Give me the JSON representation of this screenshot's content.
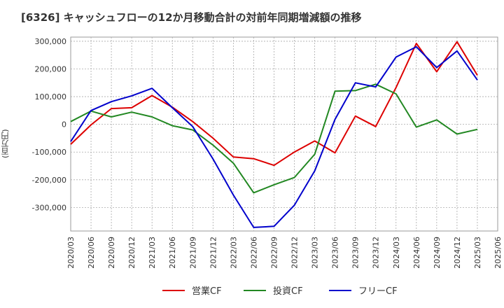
{
  "chart_data": {
    "type": "line",
    "title": "[6326]  キャッシュフローの12か月移動合計の対前年同期増減額の推移",
    "ylabel": "(百万円)",
    "xlabel": "",
    "ylim": [
      -385000,
      315000
    ],
    "yticks": [
      300000,
      200000,
      100000,
      0,
      -100000,
      -200000,
      -300000
    ],
    "ytick_labels": [
      "300,000",
      "200,000",
      "100,000",
      "0",
      "-100,000",
      "-200,000",
      "-300,000"
    ],
    "categories": [
      "2020/03",
      "2020/06",
      "2020/09",
      "2020/12",
      "2021/03",
      "2021/06",
      "2021/09",
      "2021/12",
      "2022/03",
      "2022/06",
      "2022/09",
      "2022/12",
      "2023/03",
      "2023/06",
      "2023/09",
      "2023/12",
      "2024/03",
      "2024/06",
      "2024/09",
      "2024/12",
      "2025/03",
      "2025/06"
    ],
    "grid": true,
    "legend_position": "bottom",
    "series": [
      {
        "name": "営業CF",
        "color": "#dd0000",
        "values": [
          -72000,
          -2000,
          57000,
          60000,
          104000,
          62000,
          10000,
          -50000,
          -118000,
          -124000,
          -148000,
          -100000,
          -60000,
          -103000,
          30000,
          -8000,
          133000,
          292000,
          190000,
          298000,
          177000,
          null
        ]
      },
      {
        "name": "投資CF",
        "color": "#228822",
        "values": [
          10000,
          48000,
          27000,
          44000,
          27000,
          -5000,
          -20000,
          -75000,
          -140000,
          -247000,
          -218000,
          -192000,
          -108000,
          120000,
          122000,
          145000,
          110000,
          -10000,
          16000,
          -35000,
          -18000,
          null
        ]
      },
      {
        "name": "フリーCF",
        "color": "#0000cc",
        "values": [
          -62000,
          50000,
          82000,
          103000,
          130000,
          60000,
          -8000,
          -125000,
          -255000,
          -372000,
          -368000,
          -292000,
          -168000,
          18000,
          150000,
          135000,
          243000,
          280000,
          205000,
          265000,
          160000,
          null
        ]
      }
    ]
  }
}
